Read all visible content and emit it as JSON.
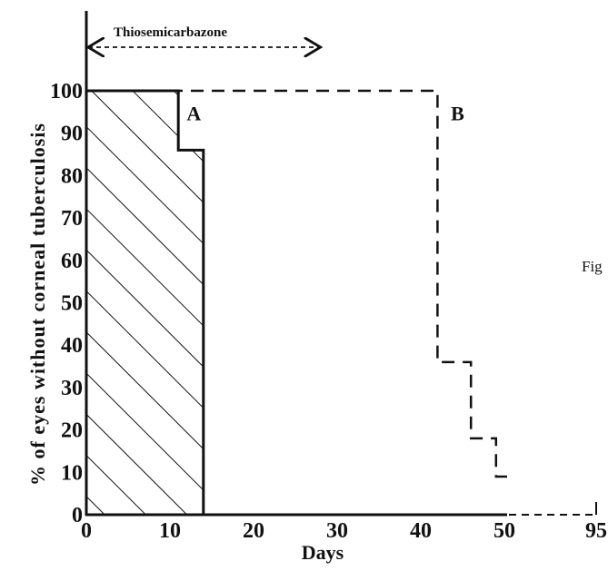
{
  "chart_data": {
    "type": "line",
    "xlabel": "Days",
    "ylabel": "% of eyes without corneal tuberculosis",
    "x_ticks": [
      "0",
      "10",
      "20",
      "30",
      "40",
      "50",
      "95"
    ],
    "y_ticks": [
      "0",
      "10",
      "20",
      "30",
      "40",
      "50",
      "60",
      "70",
      "80",
      "90",
      "100"
    ],
    "ylim": [
      0,
      100
    ],
    "treatment": {
      "label": "Thiosemicarbazone",
      "x_start": 0,
      "x_end": 28
    },
    "series": [
      {
        "name": "A",
        "style": "solid-hatched",
        "points": [
          [
            0,
            100
          ],
          [
            11,
            100
          ],
          [
            11,
            86
          ],
          [
            14,
            86
          ],
          [
            14,
            0
          ]
        ]
      },
      {
        "name": "B",
        "style": "dashed",
        "points": [
          [
            0,
            100
          ],
          [
            42,
            100
          ],
          [
            42,
            36
          ],
          [
            46,
            36
          ],
          [
            46,
            18
          ],
          [
            49,
            18
          ],
          [
            49,
            9
          ],
          [
            51,
            9
          ]
        ]
      }
    ],
    "annotations": [
      "Fig"
    ],
    "colors": {
      "ink": "#111111",
      "background": "#ffffff"
    }
  }
}
